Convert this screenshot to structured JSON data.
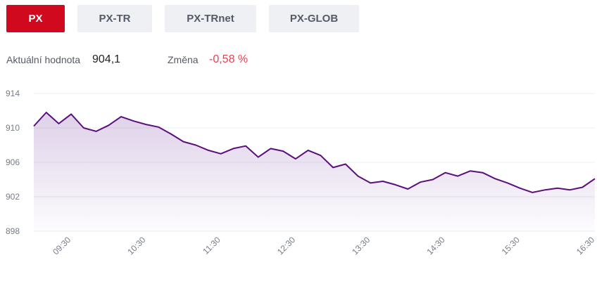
{
  "tabs": [
    {
      "label": "PX",
      "active": true
    },
    {
      "label": "PX-TR",
      "active": false
    },
    {
      "label": "PX-TRnet",
      "active": false
    },
    {
      "label": "PX-GLOB",
      "active": false
    }
  ],
  "stats": {
    "current_label": "Aktuální hodnota",
    "current_value": "904,1",
    "change_label": "Změna",
    "change_value": "-0,58 %"
  },
  "colors": {
    "accent": "#d1091e",
    "line": "#5b0f7a",
    "change_negative": "#e8414f"
  },
  "chart_data": {
    "type": "area",
    "title": "",
    "xlabel": "",
    "ylabel": "",
    "ylim": [
      898,
      914
    ],
    "y_ticks": [
      "914",
      "910",
      "906",
      "902",
      "898"
    ],
    "x_ticks": [
      "09:30",
      "10:30",
      "11:30",
      "12:30",
      "13:30",
      "14:30",
      "15:30",
      "16:30"
    ],
    "x": [
      "09:00",
      "09:10",
      "09:20",
      "09:30",
      "09:40",
      "09:50",
      "10:00",
      "10:10",
      "10:20",
      "10:30",
      "10:40",
      "10:50",
      "11:00",
      "11:10",
      "11:20",
      "11:30",
      "11:40",
      "11:50",
      "12:00",
      "12:10",
      "12:20",
      "12:30",
      "12:40",
      "12:50",
      "13:00",
      "13:10",
      "13:20",
      "13:30",
      "13:40",
      "13:50",
      "14:00",
      "14:10",
      "14:20",
      "14:30",
      "14:40",
      "14:50",
      "15:00",
      "15:10",
      "15:20",
      "15:30",
      "15:40",
      "15:50",
      "16:00",
      "16:10",
      "16:20",
      "16:30"
    ],
    "series": [
      {
        "values": [
          910.2,
          911.8,
          910.5,
          911.6,
          910.0,
          909.6,
          910.3,
          911.3,
          910.8,
          910.4,
          910.1,
          909.3,
          908.4,
          908.0,
          907.4,
          907.0,
          907.6,
          907.9,
          906.6,
          907.6,
          907.3,
          906.4,
          907.4,
          906.8,
          905.4,
          905.8,
          904.4,
          903.6,
          903.8,
          903.4,
          902.9,
          903.7,
          904.0,
          904.8,
          904.4,
          905.0,
          904.8,
          904.1,
          903.6,
          903.0,
          902.5,
          902.8,
          903.0,
          902.8,
          903.1,
          904.1
        ]
      }
    ]
  }
}
